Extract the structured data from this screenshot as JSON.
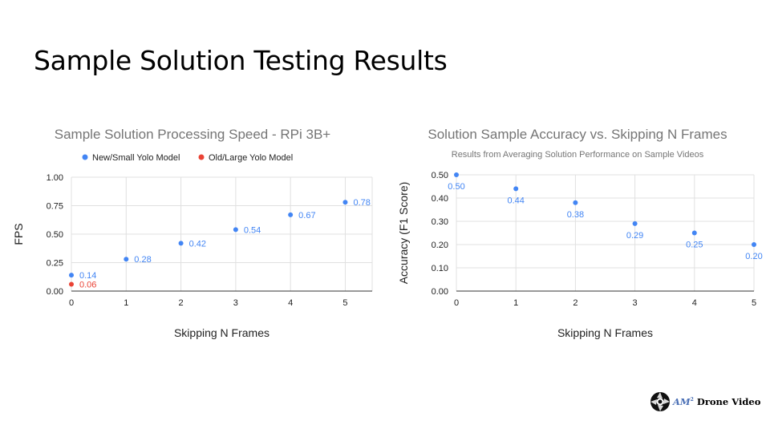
{
  "slide": {
    "title": "Sample Solution Testing Results"
  },
  "logo": {
    "brand": "AM",
    "superscript": "2",
    "text": "Drone Video"
  },
  "chart_data": [
    {
      "type": "scatter",
      "title": "Sample Solution Processing Speed - RPi 3B+",
      "subtitle": "",
      "xlabel": "Skipping N Frames",
      "ylabel": "FPS",
      "xlim": [
        0,
        5.5
      ],
      "ylim": [
        0,
        1
      ],
      "xticks": [
        "0",
        "1",
        "2",
        "3",
        "4",
        "5"
      ],
      "yticks": [
        "0.00",
        "0.25",
        "0.50",
        "0.75",
        "1.00"
      ],
      "xtick_values": [
        0,
        1,
        2,
        3,
        4,
        5
      ],
      "ytick_values": [
        0,
        0.25,
        0.5,
        0.75,
        1
      ],
      "grid": true,
      "legend": "top",
      "series": [
        {
          "name": "New/Small Yolo Model",
          "color": "#4285f4",
          "points": [
            {
              "x": 0,
              "y": 0.14,
              "label": "0.14"
            },
            {
              "x": 1,
              "y": 0.28,
              "label": "0.28"
            },
            {
              "x": 2,
              "y": 0.42,
              "label": "0.42"
            },
            {
              "x": 3,
              "y": 0.54,
              "label": "0.54"
            },
            {
              "x": 4,
              "y": 0.67,
              "label": "0.67"
            },
            {
              "x": 5,
              "y": 0.78,
              "label": "0.78"
            }
          ]
        },
        {
          "name": "Old/Large Yolo Model",
          "color": "#ea4335",
          "points": [
            {
              "x": 0,
              "y": 0.06,
              "label": "0.06"
            }
          ]
        }
      ]
    },
    {
      "type": "scatter",
      "title": "Solution Sample Accuracy vs. Skipping N Frames",
      "subtitle": "Results from Averaging Solution Performance on Sample Videos",
      "xlabel": "Skipping N Frames",
      "ylabel": "Accuracy (F1 Score)",
      "xlim": [
        0,
        5
      ],
      "ylim": [
        0,
        0.5
      ],
      "xticks": [
        "0",
        "1",
        "2",
        "3",
        "4",
        "5"
      ],
      "yticks": [
        "0.00",
        "0.10",
        "0.20",
        "0.30",
        "0.40",
        "0.50"
      ],
      "xtick_values": [
        0,
        1,
        2,
        3,
        4,
        5
      ],
      "ytick_values": [
        0,
        0.1,
        0.2,
        0.3,
        0.4,
        0.5
      ],
      "grid": true,
      "legend": "none",
      "series": [
        {
          "name": "",
          "color": "#4285f4",
          "points": [
            {
              "x": 0,
              "y": 0.5,
              "label": "0.50"
            },
            {
              "x": 1,
              "y": 0.44,
              "label": "0.44"
            },
            {
              "x": 2,
              "y": 0.38,
              "label": "0.38"
            },
            {
              "x": 3,
              "y": 0.29,
              "label": "0.29"
            },
            {
              "x": 4,
              "y": 0.25,
              "label": "0.25"
            },
            {
              "x": 5,
              "y": 0.2,
              "label": "0.20"
            }
          ]
        }
      ]
    }
  ]
}
